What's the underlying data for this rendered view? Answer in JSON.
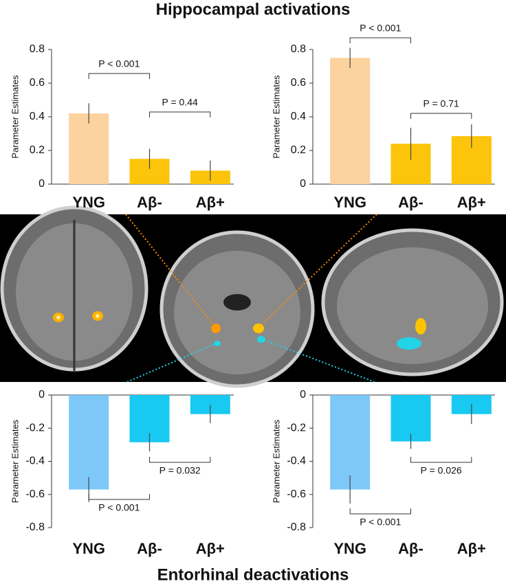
{
  "figure": {
    "title": "Hippocampal activations",
    "bottom_title": "Entorhinal deactivations"
  },
  "chart_data": [
    {
      "type": "bar",
      "ylabel": "Parameter Estimates",
      "categories": [
        "YNG",
        "Aβ-",
        "Aβ+"
      ],
      "values": [
        0.42,
        0.15,
        0.08
      ],
      "errors": [
        0.06,
        0.06,
        0.06
      ],
      "colors": [
        "#fcd29f",
        "#fcc40a",
        "#fcc40a"
      ],
      "ylim": [
        0,
        0.8
      ],
      "yticks": [
        0,
        0.2,
        0.4,
        0.6,
        0.8
      ],
      "annotations": [
        "P < 0.001",
        "P = 0.44"
      ]
    },
    {
      "type": "bar",
      "ylabel": "Parameter Estimates",
      "categories": [
        "YNG",
        "Aβ-",
        "Aβ+"
      ],
      "values": [
        0.75,
        0.24,
        0.285
      ],
      "errors": [
        0.06,
        0.095,
        0.07
      ],
      "colors": [
        "#fcd29f",
        "#fcc40a",
        "#fcc40a"
      ],
      "ylim": [
        0,
        0.8
      ],
      "yticks": [
        0,
        0.2,
        0.4,
        0.6,
        0.8
      ],
      "annotations": [
        "P < 0.001",
        "P = 0.71"
      ]
    },
    {
      "type": "bar",
      "ylabel": "Parameter Estimates",
      "categories": [
        "YNG",
        "Aβ-",
        "Aβ+"
      ],
      "values": [
        -0.57,
        -0.285,
        -0.115
      ],
      "errors": [
        0.075,
        0.055,
        0.055
      ],
      "colors": [
        "#7ec8f8",
        "#18c9f2",
        "#18c9f2"
      ],
      "ylim": [
        -0.8,
        0
      ],
      "yticks": [
        0,
        -0.2,
        -0.4,
        -0.6,
        -0.8
      ],
      "annotations": [
        "P = 0.032",
        "P < 0.001"
      ]
    },
    {
      "type": "bar",
      "ylabel": "Parameter Estimates",
      "categories": [
        "YNG",
        "Aβ-",
        "Aβ+"
      ],
      "values": [
        -0.57,
        -0.28,
        -0.115
      ],
      "errors": [
        0.085,
        0.045,
        0.06
      ],
      "colors": [
        "#7ec8f8",
        "#18c9f2",
        "#18c9f2"
      ],
      "ylim": [
        -0.8,
        0
      ],
      "yticks": [
        0,
        -0.2,
        -0.4,
        -0.6,
        -0.8
      ],
      "annotations": [
        "P = 0.026",
        "P < 0.001"
      ]
    }
  ]
}
